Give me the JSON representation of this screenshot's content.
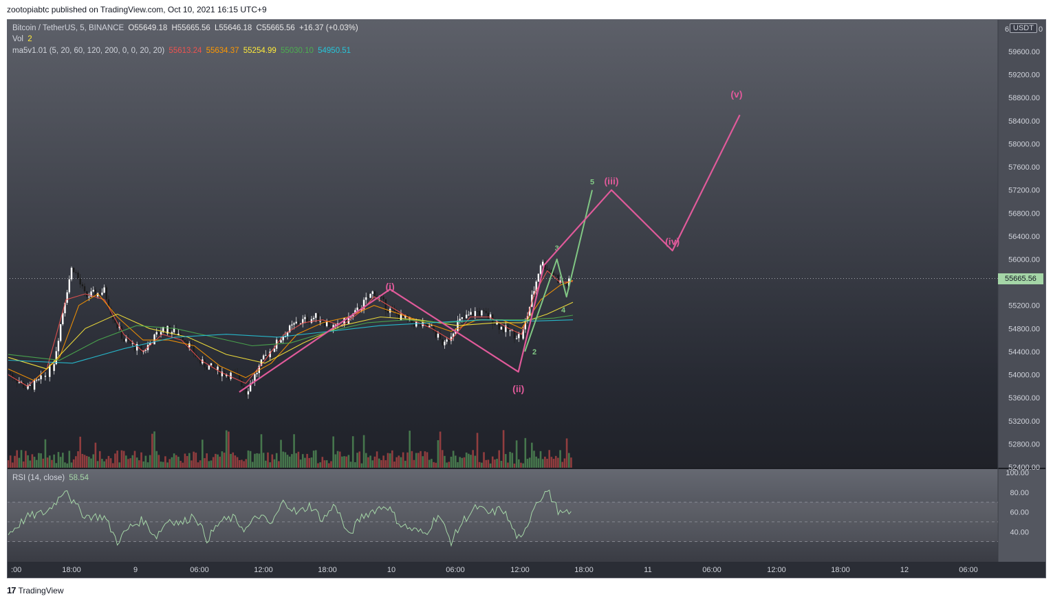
{
  "header": {
    "published": "zootopiabtc published on TradingView.com, Oct 10, 2021 16:15 UTC+9"
  },
  "footer": {
    "brand": "TradingView",
    "logo_icon": "tradingview-logo-icon"
  },
  "legend": {
    "symbol": "Bitcoin / TetherUS, 5, BINANCE",
    "open": "O55649.18",
    "high": "H55665.56",
    "low": "L55646.18",
    "close": "C55665.56",
    "change": "+16.37 (+0.03%)",
    "vol_label": "Vol",
    "vol_value": "2",
    "ma_label": "ma5v1.01 (5, 20, 60, 120, 200, 0, 0, 20, 20)",
    "ma_values": [
      {
        "value": "55613.24",
        "color": "#ef5350"
      },
      {
        "value": "55634.37",
        "color": "#ff9800"
      },
      {
        "value": "55254.99",
        "color": "#ffeb3b"
      },
      {
        "value": "55030.10",
        "color": "#4caf50"
      },
      {
        "value": "54950.51",
        "color": "#26c6da"
      }
    ],
    "rsi_label": "RSI (14, close)",
    "rsi_value": "58.54"
  },
  "currency_badge": "USDT",
  "last_price": "55665.56",
  "chart_data": {
    "type": "candlestick",
    "symbol": "Bitcoin / TetherUS",
    "interval": "5",
    "exchange": "BINANCE",
    "price_axis": {
      "ticks": [
        "59600.00",
        "59200.00",
        "58800.00",
        "58400.00",
        "58000.00",
        "57600.00",
        "57200.00",
        "56800.00",
        "56400.00",
        "56000.00",
        "55200.00",
        "54800.00",
        "54400.00",
        "54000.00",
        "53600.00",
        "53200.00",
        "52800.00",
        "52400.00"
      ],
      "top_partial_label": "6",
      "top_partial_label_suffix": "0",
      "range": [
        52300,
        60000
      ]
    },
    "time_axis": {
      "ticks": [
        ":00",
        "18:00",
        "9",
        "06:00",
        "12:00",
        "18:00",
        "10",
        "06:00",
        "12:00",
        "18:00",
        "11",
        "06:00",
        "12:00",
        "18:00",
        "12",
        "06:00"
      ]
    },
    "rsi_axis": {
      "ticks": [
        "100.00",
        "80.00",
        "60.00",
        "40.00"
      ],
      "range": [
        20,
        100
      ],
      "band": [
        30,
        70
      ]
    },
    "price_path": [
      [
        0,
        54050
      ],
      [
        3,
        53750
      ],
      [
        5,
        53900
      ],
      [
        7,
        54150
      ],
      [
        9,
        55400
      ],
      [
        10,
        55900
      ],
      [
        12,
        55350
      ],
      [
        15,
        55450
      ],
      [
        16,
        55100
      ],
      [
        18,
        54600
      ],
      [
        21,
        54400
      ],
      [
        24,
        54800
      ],
      [
        27,
        54700
      ],
      [
        30,
        54200
      ],
      [
        33,
        54050
      ],
      [
        36,
        53950
      ],
      [
        37,
        53700
      ],
      [
        40,
        54300
      ],
      [
        43,
        54700
      ],
      [
        45,
        54900
      ],
      [
        48,
        55000
      ],
      [
        51,
        54800
      ],
      [
        54,
        55050
      ],
      [
        57,
        55450
      ],
      [
        59,
        55150
      ],
      [
        61,
        55000
      ],
      [
        63,
        54900
      ],
      [
        66,
        54800
      ],
      [
        68,
        54500
      ],
      [
        70,
        54900
      ],
      [
        73,
        55100
      ],
      [
        75,
        55000
      ],
      [
        77,
        54800
      ],
      [
        79,
        54700
      ],
      [
        80,
        54650
      ],
      [
        82,
        55500
      ],
      [
        83,
        55950
      ],
      [
        85,
        55750
      ],
      [
        86,
        55600
      ],
      [
        87,
        55550
      ],
      [
        88,
        55680
      ]
    ],
    "moving_averages": [
      {
        "period": "5",
        "color": "#ef5350",
        "points": [
          [
            0,
            54000
          ],
          [
            3,
            53800
          ],
          [
            6,
            54100
          ],
          [
            9,
            55300
          ],
          [
            12,
            55400
          ],
          [
            15,
            55300
          ],
          [
            18,
            54700
          ],
          [
            21,
            54400
          ],
          [
            24,
            54700
          ],
          [
            27,
            54600
          ],
          [
            30,
            54250
          ],
          [
            33,
            54050
          ],
          [
            37,
            53850
          ],
          [
            40,
            54250
          ],
          [
            43,
            54700
          ],
          [
            46,
            54900
          ],
          [
            49,
            54950
          ],
          [
            52,
            54850
          ],
          [
            55,
            55100
          ],
          [
            57,
            55350
          ],
          [
            60,
            55150
          ],
          [
            63,
            54950
          ],
          [
            66,
            54800
          ],
          [
            69,
            54600
          ],
          [
            72,
            55000
          ],
          [
            75,
            55000
          ],
          [
            78,
            54800
          ],
          [
            80,
            54700
          ],
          [
            82,
            55400
          ],
          [
            84,
            55800
          ],
          [
            86,
            55600
          ],
          [
            88,
            55613
          ]
        ]
      },
      {
        "period": "20",
        "color": "#ff9800",
        "points": [
          [
            0,
            54100
          ],
          [
            4,
            53900
          ],
          [
            8,
            54300
          ],
          [
            11,
            55200
          ],
          [
            14,
            55400
          ],
          [
            17,
            55000
          ],
          [
            21,
            54600
          ],
          [
            25,
            54600
          ],
          [
            29,
            54500
          ],
          [
            33,
            54150
          ],
          [
            37,
            53950
          ],
          [
            41,
            54200
          ],
          [
            45,
            54700
          ],
          [
            49,
            54900
          ],
          [
            53,
            55000
          ],
          [
            57,
            55200
          ],
          [
            61,
            55050
          ],
          [
            65,
            54900
          ],
          [
            69,
            54750
          ],
          [
            73,
            54950
          ],
          [
            77,
            54950
          ],
          [
            80,
            54800
          ],
          [
            83,
            55300
          ],
          [
            86,
            55550
          ],
          [
            88,
            55634
          ]
        ]
      },
      {
        "period": "60",
        "color": "#ffeb3b",
        "points": [
          [
            0,
            54300
          ],
          [
            6,
            54100
          ],
          [
            12,
            54800
          ],
          [
            17,
            55050
          ],
          [
            22,
            54800
          ],
          [
            28,
            54650
          ],
          [
            34,
            54350
          ],
          [
            40,
            54200
          ],
          [
            46,
            54550
          ],
          [
            52,
            54850
          ],
          [
            58,
            55000
          ],
          [
            64,
            54950
          ],
          [
            70,
            54850
          ],
          [
            76,
            54900
          ],
          [
            80,
            54900
          ],
          [
            84,
            55050
          ],
          [
            88,
            55255
          ]
        ]
      },
      {
        "period": "120",
        "color": "#4caf50",
        "points": [
          [
            0,
            54350
          ],
          [
            8,
            54250
          ],
          [
            14,
            54600
          ],
          [
            20,
            54850
          ],
          [
            26,
            54800
          ],
          [
            32,
            54650
          ],
          [
            38,
            54500
          ],
          [
            44,
            54550
          ],
          [
            50,
            54750
          ],
          [
            56,
            54900
          ],
          [
            62,
            54950
          ],
          [
            68,
            54900
          ],
          [
            74,
            54950
          ],
          [
            80,
            54950
          ],
          [
            85,
            54980
          ],
          [
            88,
            55030
          ]
        ]
      },
      {
        "period": "200",
        "color": "#26c6da",
        "points": [
          [
            0,
            54250
          ],
          [
            10,
            54200
          ],
          [
            18,
            54450
          ],
          [
            26,
            54650
          ],
          [
            34,
            54700
          ],
          [
            42,
            54650
          ],
          [
            50,
            54750
          ],
          [
            58,
            54850
          ],
          [
            66,
            54900
          ],
          [
            74,
            54950
          ],
          [
            82,
            54930
          ],
          [
            88,
            54950
          ]
        ]
      }
    ],
    "elliott_waves": {
      "primary": {
        "color": "#e05a9a",
        "labels": [
          {
            "text": "(i)",
            "x": 59.5,
            "price": 55470
          },
          {
            "text": "(ii)",
            "x": 79.5,
            "price": 53700
          },
          {
            "text": "(iii)",
            "x": 94,
            "price": 57300
          },
          {
            "text": "(iv)",
            "x": 103.5,
            "price": 56250
          },
          {
            "text": "(v)",
            "x": 113.5,
            "price": 58800
          }
        ],
        "path": [
          [
            36,
            53700
          ],
          [
            59.5,
            55480
          ],
          [
            79.5,
            54050
          ],
          [
            83.5,
            55900
          ],
          [
            94,
            57200
          ],
          [
            103.5,
            56150
          ],
          [
            114,
            58500
          ]
        ]
      },
      "subwaves": {
        "color": "#81c784",
        "labels": [
          {
            "text": "1",
            "x": 81.5,
            "price": 54950
          },
          {
            "text": "2",
            "x": 82,
            "price": 54350
          },
          {
            "text": "3",
            "x": 85.5,
            "price": 56150
          },
          {
            "text": "4",
            "x": 86.5,
            "price": 55080
          },
          {
            "text": "5",
            "x": 91,
            "price": 57300
          }
        ],
        "path": [
          [
            80.5,
            54400
          ],
          [
            85.5,
            56000
          ],
          [
            87,
            55350
          ],
          [
            91,
            57200
          ]
        ]
      }
    },
    "rsi": {
      "color": "#a5d6a7",
      "points": [
        [
          0,
          38
        ],
        [
          3,
          55
        ],
        [
          6,
          60
        ],
        [
          8,
          75
        ],
        [
          9,
          86
        ],
        [
          10,
          70
        ],
        [
          12,
          56
        ],
        [
          15,
          55
        ],
        [
          17,
          30
        ],
        [
          19,
          45
        ],
        [
          21,
          52
        ],
        [
          23,
          35
        ],
        [
          25,
          53
        ],
        [
          27,
          48
        ],
        [
          29,
          58
        ],
        [
          31,
          32
        ],
        [
          33,
          50
        ],
        [
          35,
          54
        ],
        [
          37,
          42
        ],
        [
          39,
          57
        ],
        [
          41,
          47
        ],
        [
          43,
          72
        ],
        [
          45,
          58
        ],
        [
          47,
          67
        ],
        [
          49,
          52
        ],
        [
          51,
          68
        ],
        [
          53,
          35
        ],
        [
          55,
          55
        ],
        [
          57,
          62
        ],
        [
          59,
          67
        ],
        [
          61,
          48
        ],
        [
          63,
          42
        ],
        [
          65,
          38
        ],
        [
          67,
          58
        ],
        [
          69,
          30
        ],
        [
          71,
          52
        ],
        [
          73,
          65
        ],
        [
          75,
          58
        ],
        [
          77,
          64
        ],
        [
          79,
          38
        ],
        [
          80,
          30
        ],
        [
          82,
          68
        ],
        [
          84,
          82
        ],
        [
          86,
          58
        ],
        [
          88,
          58
        ]
      ]
    }
  }
}
